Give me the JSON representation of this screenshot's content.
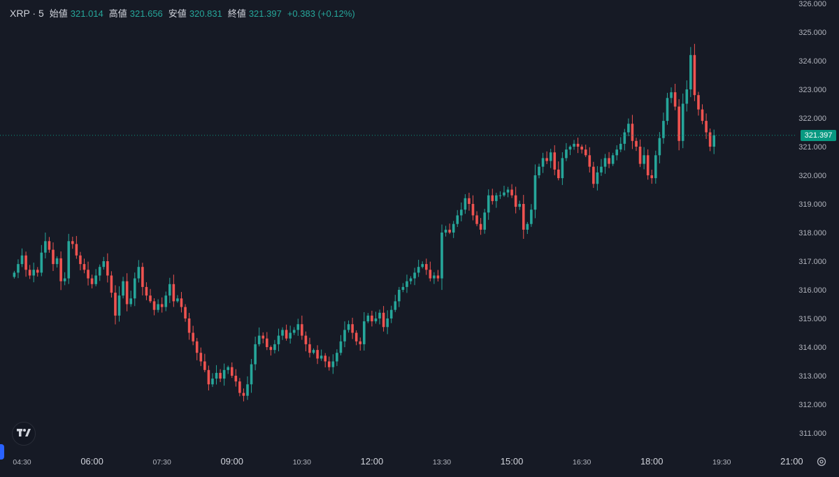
{
  "legend": {
    "symbol": "XRP · 5",
    "open_label": "始値",
    "open_value": "321.014",
    "high_label": "高値",
    "high_value": "321.656",
    "low_label": "安値",
    "low_value": "320.831",
    "close_label": "終値",
    "close_value": "321.397",
    "change": "+0.383 (+0.12%)"
  },
  "last_price_label": "321.397",
  "colors": {
    "background": "#161a25",
    "up": "#26a69a",
    "down": "#ef5350",
    "text": "#d1d4dc",
    "axis_text": "#b2b5be",
    "last_price_tag": "#089981"
  },
  "icons": [
    "tradingview-logo-icon",
    "settings-icon"
  ],
  "chart_data": {
    "type": "candlestick",
    "interval_minutes": 5,
    "start_time": "04:20",
    "last_price": 321.397,
    "ylim": [
      310.7,
      326.0
    ],
    "y_ticks": [
      "311.000",
      "312.000",
      "313.000",
      "314.000",
      "315.000",
      "316.000",
      "317.000",
      "318.000",
      "319.000",
      "320.000",
      "321.000",
      "322.000",
      "323.000",
      "324.000",
      "325.000",
      "326.000"
    ],
    "x_ticks": [
      {
        "time": "04:30",
        "label": "04:30",
        "major": false
      },
      {
        "time": "06:00",
        "label": "06:00",
        "major": true
      },
      {
        "time": "07:30",
        "label": "07:30",
        "major": false
      },
      {
        "time": "09:00",
        "label": "09:00",
        "major": true
      },
      {
        "time": "10:30",
        "label": "10:30",
        "major": false
      },
      {
        "time": "12:00",
        "label": "12:00",
        "major": true
      },
      {
        "time": "13:30",
        "label": "13:30",
        "major": false
      },
      {
        "time": "15:00",
        "label": "15:00",
        "major": true
      },
      {
        "time": "16:30",
        "label": "16:30",
        "major": false
      },
      {
        "time": "18:00",
        "label": "18:00",
        "major": true
      },
      {
        "time": "19:30",
        "label": "19:30",
        "major": false
      },
      {
        "time": "21:00",
        "label": "21:00",
        "major": true
      }
    ],
    "close": [
      316.6,
      316.9,
      317.2,
      316.7,
      316.5,
      316.7,
      316.6,
      317.3,
      317.7,
      317.4,
      316.9,
      317.1,
      316.3,
      316.4,
      317.7,
      317.6,
      317.2,
      316.9,
      316.7,
      316.4,
      316.2,
      316.5,
      316.8,
      317.0,
      316.5,
      315.9,
      315.1,
      315.8,
      316.3,
      315.5,
      315.7,
      316.4,
      316.8,
      316.1,
      315.8,
      315.6,
      315.3,
      315.5,
      315.4,
      315.8,
      316.2,
      315.6,
      315.7,
      315.4,
      315.0,
      314.5,
      314.2,
      313.8,
      313.5,
      313.2,
      312.7,
      312.9,
      313.1,
      312.9,
      313.2,
      313.3,
      313.0,
      312.8,
      312.4,
      312.3,
      312.7,
      313.4,
      314.1,
      314.4,
      314.3,
      314.0,
      313.9,
      314.1,
      314.4,
      314.6,
      314.3,
      314.5,
      314.6,
      314.8,
      314.4,
      314.1,
      313.8,
      313.9,
      313.6,
      313.7,
      313.5,
      313.3,
      313.5,
      313.8,
      314.2,
      314.6,
      314.8,
      314.5,
      314.2,
      314.1,
      314.9,
      315.1,
      314.9,
      315.0,
      315.2,
      314.7,
      315.0,
      315.3,
      315.6,
      316.0,
      316.1,
      316.3,
      316.4,
      316.6,
      316.8,
      316.9,
      316.7,
      316.4,
      316.5,
      316.4,
      318.0,
      318.1,
      318.0,
      318.3,
      318.6,
      318.8,
      319.2,
      319.0,
      318.6,
      318.3,
      318.1,
      318.7,
      319.3,
      319.1,
      319.3,
      319.3,
      319.4,
      319.5,
      319.3,
      318.9,
      319.0,
      318.1,
      318.3,
      318.8,
      320.0,
      320.3,
      320.6,
      320.5,
      320.8,
      320.2,
      319.9,
      320.6,
      320.9,
      321.0,
      321.1,
      321.0,
      320.9,
      320.7,
      320.3,
      319.7,
      320.1,
      320.3,
      320.6,
      320.4,
      320.7,
      320.9,
      321.1,
      321.5,
      321.8,
      321.2,
      321.0,
      320.4,
      320.7,
      320.0,
      319.9,
      320.7,
      321.3,
      321.9,
      322.7,
      322.9,
      322.4,
      321.2,
      322.5,
      323.0,
      324.2,
      322.8,
      322.3,
      321.9,
      321.5,
      321.0,
      321.397
    ],
    "candles_note": "Each candle derives open from the previous close; high/low extend slightly beyond the body."
  }
}
